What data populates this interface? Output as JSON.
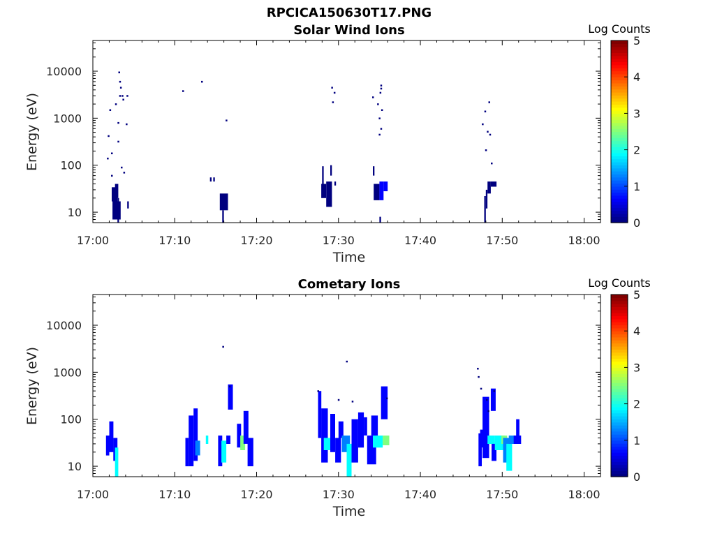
{
  "figure": {
    "title": "RPCICA150630T17.PNG"
  },
  "colormap": [
    "#00007f",
    "#0000ff",
    "#007fff",
    "#00ffff",
    "#7fff7f",
    "#ffff00",
    "#ff7f00",
    "#ff0000",
    "#7f0000"
  ],
  "chart_data": [
    {
      "type": "heatmap",
      "title": "Solar Wind Ions",
      "xlabel": "Time",
      "ylabel": "Energy (eV)",
      "x_tick_labels": [
        "17:00",
        "17:10",
        "17:20",
        "17:30",
        "17:40",
        "17:50",
        "18:00"
      ],
      "xlim_minutes": [
        0,
        62
      ],
      "y_scale": "log",
      "y_tick_labels": [
        "10",
        "100",
        "1000",
        "10000"
      ],
      "ylim": [
        6,
        45000
      ],
      "colorbar": {
        "label": "Log Counts",
        "tick_labels": [
          "0",
          "1",
          "2",
          "3",
          "4",
          "5"
        ],
        "range": [
          0,
          5
        ]
      },
      "cells": [
        [
          2.3,
          3.0,
          17,
          34,
          0.2
        ],
        [
          2.4,
          3.4,
          7,
          17,
          0.3
        ],
        [
          2.7,
          3.1,
          20,
          40,
          0.3
        ],
        [
          3.0,
          3.2,
          6,
          20,
          0.3
        ],
        [
          4.2,
          4.4,
          12,
          17,
          0.3
        ],
        [
          15.5,
          16.5,
          11,
          25,
          0.3
        ],
        [
          15.8,
          16.0,
          6,
          11,
          0.3
        ],
        [
          14.3,
          14.5,
          45,
          55,
          0.2
        ],
        [
          14.7,
          14.9,
          45,
          55,
          0.2
        ],
        [
          27.9,
          28.5,
          20,
          40,
          0.3
        ],
        [
          28.5,
          29.2,
          13,
          45,
          0.3
        ],
        [
          28.0,
          28.2,
          40,
          95,
          0.2
        ],
        [
          29.0,
          29.2,
          60,
          100,
          0.2
        ],
        [
          29.5,
          29.7,
          37,
          45,
          0.2
        ],
        [
          34.3,
          35.0,
          18,
          40,
          0.3
        ],
        [
          35.0,
          35.5,
          18,
          45,
          0.9
        ],
        [
          35.5,
          36.0,
          28,
          45,
          0.8
        ],
        [
          34.2,
          34.4,
          60,
          95,
          0.2
        ],
        [
          35.0,
          35.2,
          6,
          8,
          0.2
        ],
        [
          47.8,
          48.0,
          6,
          22,
          0.3
        ],
        [
          48.0,
          48.2,
          12,
          30,
          0.3
        ],
        [
          48.2,
          48.6,
          25,
          45,
          0.3
        ],
        [
          48.6,
          49.3,
          35,
          45,
          0.3
        ]
      ],
      "points": [
        [
          1.8,
          140
        ],
        [
          1.9,
          420
        ],
        [
          2.1,
          1500
        ],
        [
          2.3,
          180
        ],
        [
          2.3,
          60
        ],
        [
          2.8,
          2000
        ],
        [
          3.1,
          320
        ],
        [
          3.1,
          800
        ],
        [
          3.2,
          9500
        ],
        [
          3.3,
          6000
        ],
        [
          3.4,
          4500
        ],
        [
          3.3,
          3000
        ],
        [
          3.6,
          3000
        ],
        [
          3.5,
          90
        ],
        [
          3.8,
          70
        ],
        [
          4.1,
          750
        ],
        [
          4.2,
          3000
        ],
        [
          3.7,
          2500
        ],
        [
          11.0,
          3800
        ],
        [
          13.3,
          6000
        ],
        [
          16.3,
          900
        ],
        [
          29.2,
          4500
        ],
        [
          29.5,
          3500
        ],
        [
          29.3,
          2200
        ],
        [
          34.2,
          2800
        ],
        [
          34.8,
          2000
        ],
        [
          35.2,
          5000
        ],
        [
          35.2,
          4300
        ],
        [
          35.1,
          3500
        ],
        [
          35.3,
          1500
        ],
        [
          35.0,
          1000
        ],
        [
          35.2,
          600
        ],
        [
          35.0,
          450
        ],
        [
          47.6,
          750
        ],
        [
          47.9,
          1400
        ],
        [
          48.2,
          520
        ],
        [
          48.5,
          450
        ],
        [
          48.0,
          210
        ],
        [
          48.4,
          2200
        ],
        [
          48.7,
          110
        ]
      ]
    },
    {
      "type": "heatmap",
      "title": "Cometary Ions",
      "xlabel": "Time",
      "ylabel": "Energy (eV)",
      "x_tick_labels": [
        "17:00",
        "17:10",
        "17:20",
        "17:30",
        "17:40",
        "17:50",
        "18:00"
      ],
      "xlim_minutes": [
        0,
        62
      ],
      "y_scale": "log",
      "y_tick_labels": [
        "10",
        "100",
        "1000",
        "10000"
      ],
      "ylim": [
        6,
        45000
      ],
      "colorbar": {
        "label": "Log Counts",
        "tick_labels": [
          "0",
          "1",
          "2",
          "3",
          "4",
          "5"
        ],
        "range": [
          0,
          5
        ]
      },
      "cells": [
        [
          1.6,
          2.0,
          17,
          45,
          0.4
        ],
        [
          2.0,
          2.5,
          20,
          90,
          0.5
        ],
        [
          2.5,
          3.0,
          13,
          40,
          0.9
        ],
        [
          2.7,
          3.1,
          6,
          25,
          1.9
        ],
        [
          11.3,
          11.7,
          10,
          40,
          0.4
        ],
        [
          11.7,
          12.3,
          10,
          120,
          0.7
        ],
        [
          12.3,
          12.8,
          13,
          170,
          0.9
        ],
        [
          12.5,
          13.1,
          17,
          35,
          1.5
        ],
        [
          13.8,
          14.1,
          30,
          45,
          1.9
        ],
        [
          15.3,
          15.8,
          10,
          45,
          0.6
        ],
        [
          15.7,
          16.3,
          12,
          35,
          1.7
        ],
        [
          16.3,
          16.8,
          30,
          45,
          0.5
        ],
        [
          16.5,
          17.1,
          160,
          550,
          0.9
        ],
        [
          17.6,
          18.1,
          25,
          80,
          0.7
        ],
        [
          18.0,
          18.6,
          22,
          45,
          2.4
        ],
        [
          18.4,
          19.0,
          30,
          150,
          0.5
        ],
        [
          18.9,
          19.6,
          10,
          40,
          0.7
        ],
        [
          27.5,
          27.9,
          40,
          400,
          0.6
        ],
        [
          27.9,
          28.7,
          12,
          170,
          0.9
        ],
        [
          28.2,
          29.2,
          22,
          40,
          2.0
        ],
        [
          29.0,
          29.6,
          20,
          130,
          0.8
        ],
        [
          29.6,
          30.3,
          12,
          40,
          0.6
        ],
        [
          30.0,
          30.6,
          40,
          90,
          0.5
        ],
        [
          30.4,
          31.4,
          20,
          45,
          1.0
        ],
        [
          31.0,
          31.6,
          6,
          30,
          1.7
        ],
        [
          31.6,
          32.4,
          12,
          100,
          0.6
        ],
        [
          32.4,
          33.1,
          25,
          140,
          0.5
        ],
        [
          33.1,
          33.5,
          45,
          110,
          0.4
        ],
        [
          33.5,
          34.6,
          11,
          45,
          0.5
        ],
        [
          34.2,
          35.4,
          25,
          45,
          1.6
        ],
        [
          35.4,
          36.2,
          28,
          45,
          2.6
        ],
        [
          35.2,
          36.0,
          100,
          500,
          0.4
        ],
        [
          34.0,
          34.8,
          45,
          120,
          0.5
        ],
        [
          47.1,
          47.5,
          10,
          50,
          0.6
        ],
        [
          47.3,
          47.8,
          25,
          60,
          0.8
        ],
        [
          47.6,
          48.4,
          15,
          300,
          0.6
        ],
        [
          48.2,
          49.1,
          30,
          45,
          1.9
        ],
        [
          48.7,
          49.3,
          13,
          30,
          0.8
        ],
        [
          48.6,
          49.2,
          150,
          450,
          0.5
        ],
        [
          49.1,
          50.3,
          22,
          45,
          1.9
        ],
        [
          49.9,
          50.6,
          30,
          45,
          2.3
        ],
        [
          50.1,
          50.9,
          12,
          40,
          1.2
        ],
        [
          50.5,
          51.2,
          8,
          30,
          1.6
        ],
        [
          50.8,
          51.5,
          30,
          45,
          1.2
        ],
        [
          51.4,
          52.3,
          30,
          45,
          0.5
        ],
        [
          51.7,
          52.1,
          35,
          100,
          0.5
        ]
      ],
      "points": [
        [
          15.9,
          3500
        ],
        [
          31.0,
          1700
        ],
        [
          16.7,
          500
        ],
        [
          27.5,
          400
        ],
        [
          30.0,
          260
        ],
        [
          31.7,
          240
        ],
        [
          35.9,
          280
        ],
        [
          47.0,
          1200
        ],
        [
          47.1,
          800
        ],
        [
          47.4,
          450
        ],
        [
          48.1,
          260
        ],
        [
          48.3,
          150
        ],
        [
          49.0,
          400
        ]
      ]
    }
  ]
}
